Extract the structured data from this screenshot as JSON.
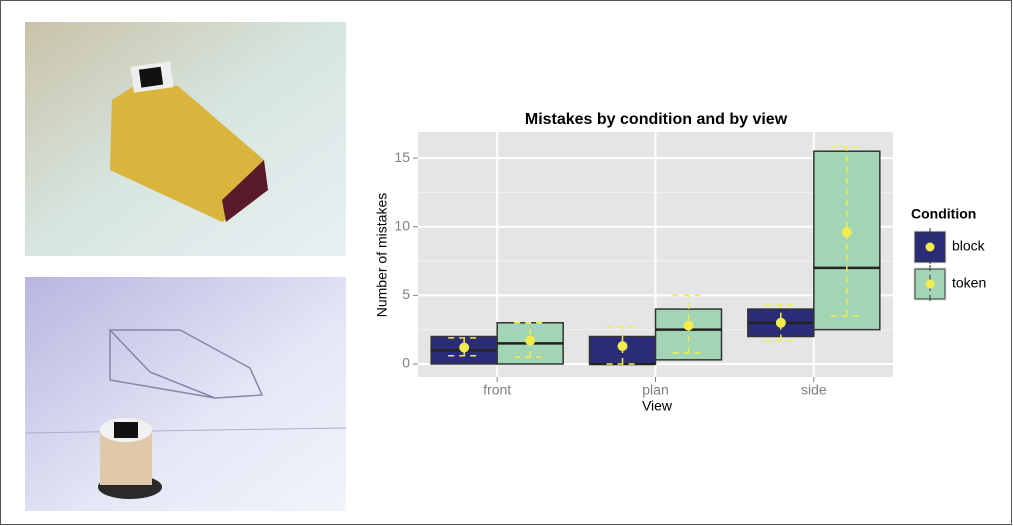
{
  "chart_data": {
    "type": "box",
    "title": "Mistakes by condition and by view",
    "x_label": "View",
    "y_label": "Number of mistakes",
    "categories": [
      "front",
      "plan",
      "side"
    ],
    "legend_title": "Condition",
    "legend_position": "right",
    "mean_color": "#f2ec4c",
    "grid": true,
    "ylim": [
      -0.95,
      16.9
    ],
    "yticks": [
      0,
      5,
      10,
      15
    ],
    "minor_yticks": [
      2.5,
      7.5,
      12.5
    ],
    "series": [
      {
        "name": "block",
        "color": "#2b2c78",
        "q1": [
          0,
          0,
          2
        ],
        "median": [
          1,
          0,
          3
        ],
        "q3": [
          2,
          2,
          4
        ],
        "mean": [
          1.2,
          1.3,
          3.0
        ],
        "ci_low": [
          0.6,
          0,
          1.7
        ],
        "ci_high": [
          1.9,
          2.7,
          4.3
        ]
      },
      {
        "name": "token",
        "color": "#a2d5b5",
        "q1": [
          0,
          0.3,
          2.5
        ],
        "median": [
          1.5,
          2.5,
          7.0
        ],
        "q3": [
          3,
          4,
          15.5
        ],
        "mean": [
          1.7,
          2.8,
          9.6
        ],
        "ci_low": [
          0.5,
          0.8,
          3.5
        ],
        "ci_high": [
          3.0,
          5.0,
          15.8
        ]
      }
    ]
  }
}
